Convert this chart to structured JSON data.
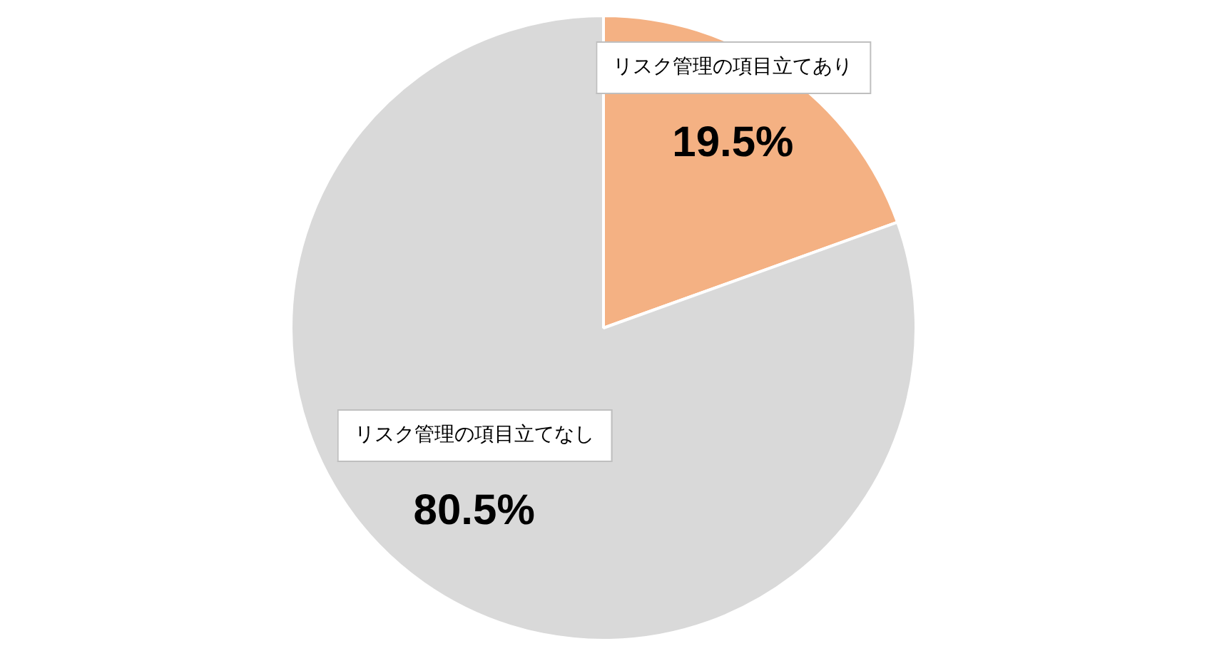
{
  "chart_data": {
    "type": "pie",
    "categories": [
      "リスク管理の項目立てあり",
      "リスク管理の項目立てなし"
    ],
    "values": [
      19.5,
      80.5
    ],
    "colors": [
      "#f4b183",
      "#d9d9d9"
    ],
    "value_labels": [
      "19.5%",
      "80.5%"
    ],
    "legend": false
  }
}
